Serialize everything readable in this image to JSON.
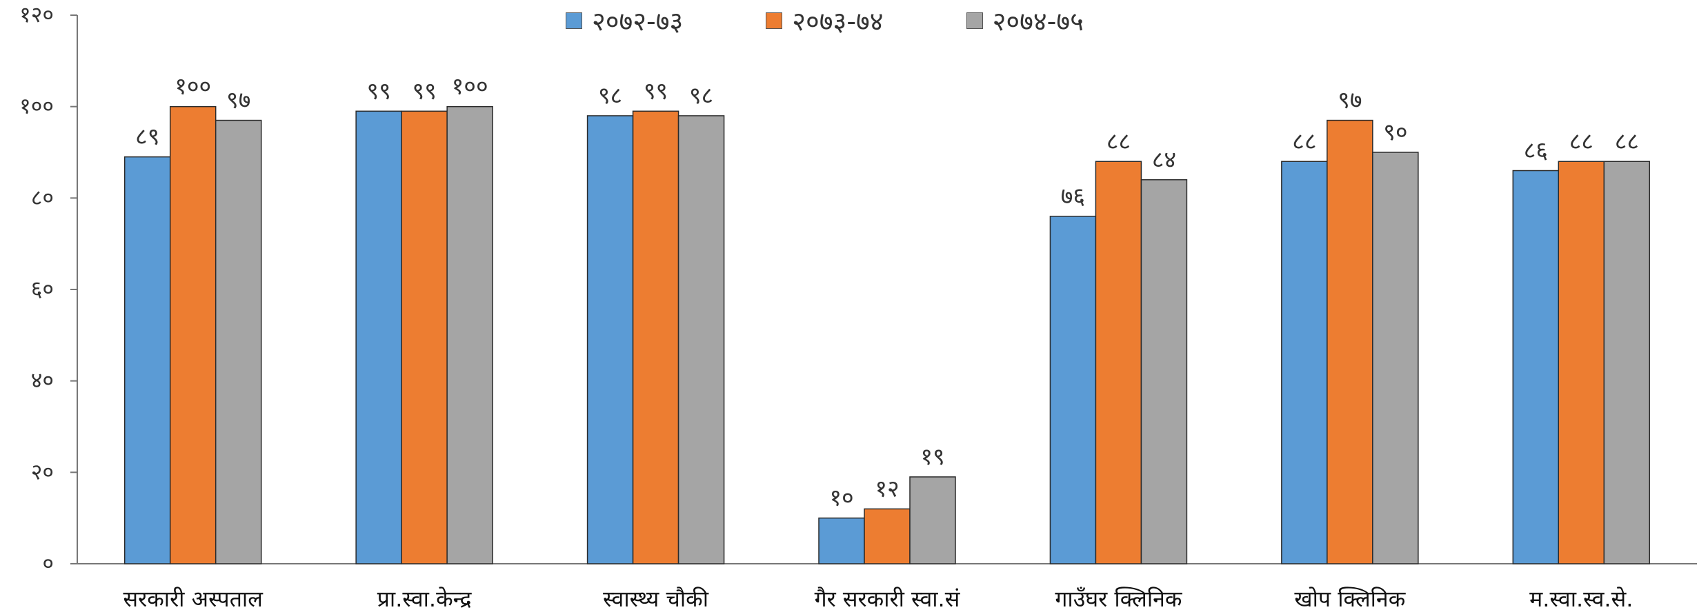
{
  "chart_data": {
    "type": "bar",
    "categories": [
      "सरकारी अस्पताल",
      "प्रा.स्वा.केन्द्र",
      "स्वास्थ्य चौकी",
      "गैर सरकारी स्वा.सं",
      "गाउँघर क्लिनिक",
      "खोप क्लिनिक",
      "म.स्वा.स्व.से."
    ],
    "series": [
      {
        "name": "२०७२-७३",
        "color": "#5B9BD5",
        "values": [
          89,
          99,
          98,
          10,
          76,
          88,
          86
        ],
        "labels": [
          "८९",
          "९९",
          "९८",
          "१०",
          "७६",
          "८८",
          "८६"
        ]
      },
      {
        "name": "२०७३-७४",
        "color": "#ED7D31",
        "values": [
          100,
          99,
          99,
          12,
          88,
          97,
          88
        ],
        "labels": [
          "१००",
          "९९",
          "९९",
          "१२",
          "८८",
          "९७",
          "८८"
        ]
      },
      {
        "name": "२०७४-७५",
        "color": "#A5A5A5",
        "values": [
          97,
          100,
          98,
          19,
          84,
          90,
          88
        ],
        "labels": [
          "९७",
          "१००",
          "९८",
          "१९",
          "८४",
          "९०",
          "८८"
        ]
      }
    ],
    "ylim": [
      0,
      120
    ],
    "yticks": [
      0,
      20,
      40,
      60,
      80,
      100,
      120
    ],
    "ytick_labels": [
      "०",
      "२०",
      "४०",
      "६०",
      "८०",
      "१००",
      "१२०"
    ],
    "grid": false,
    "legend": "top"
  }
}
